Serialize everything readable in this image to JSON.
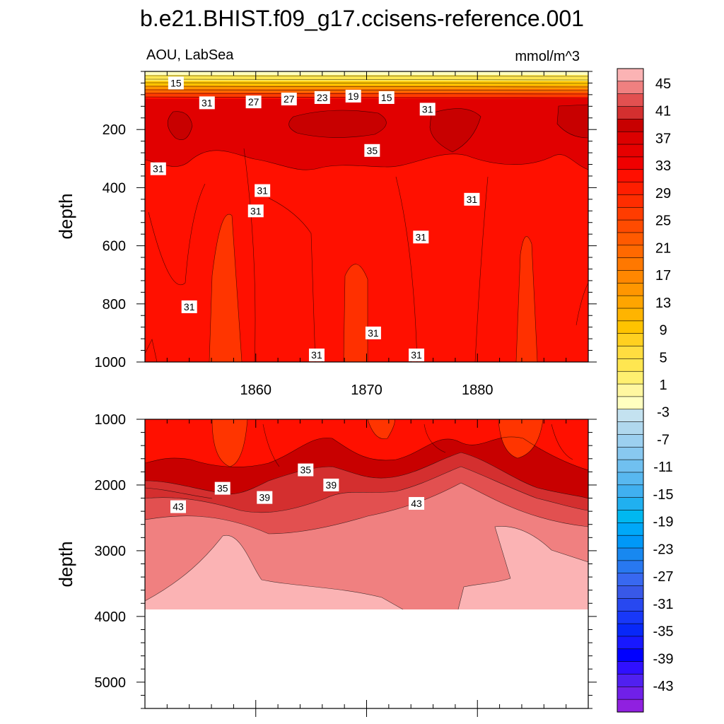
{
  "chart_data": [
    {
      "type": "contour",
      "panel": "upper",
      "title": "b.e21.BHIST.f09_g17.ccisens-reference.001",
      "left_subtitle": "AOU, LabSea",
      "right_subtitle": "mmol/m^3",
      "xlabel": "",
      "ylabel": "depth",
      "xlim": [
        1850,
        1890
      ],
      "ylim": [
        0,
        1000
      ],
      "y_inverted": true,
      "x_ticks": [
        1860,
        1870,
        1880
      ],
      "x_tick_labels": [
        "1860",
        "1870",
        "1880"
      ],
      "y_ticks": [
        200,
        400,
        600,
        800,
        1000
      ],
      "y_tick_labels": [
        "200",
        "400",
        "600",
        "800",
        "1000"
      ],
      "contour_labels": [
        {
          "text": "15",
          "x": 1852.8,
          "y": 40
        },
        {
          "text": "31",
          "x": 1855.6,
          "y": 108
        },
        {
          "text": "27",
          "x": 1859.8,
          "y": 105
        },
        {
          "text": "27",
          "x": 1863.0,
          "y": 95
        },
        {
          "text": "23",
          "x": 1866.0,
          "y": 90
        },
        {
          "text": "19",
          "x": 1868.8,
          "y": 85
        },
        {
          "text": "15",
          "x": 1871.8,
          "y": 90
        },
        {
          "text": "31",
          "x": 1875.5,
          "y": 130
        },
        {
          "text": "35",
          "x": 1870.5,
          "y": 272
        },
        {
          "text": "31",
          "x": 1851.2,
          "y": 335
        },
        {
          "text": "31",
          "x": 1860.6,
          "y": 410
        },
        {
          "text": "31",
          "x": 1879.5,
          "y": 440
        },
        {
          "text": "31",
          "x": 1860.0,
          "y": 480
        },
        {
          "text": "31",
          "x": 1874.9,
          "y": 570
        },
        {
          "text": "31",
          "x": 1854.0,
          "y": 810
        },
        {
          "text": "31",
          "x": 1870.6,
          "y": 900
        },
        {
          "text": "31",
          "x": 1865.5,
          "y": 1140
        },
        {
          "text": "31",
          "x": 1874.5,
          "y": 1180
        }
      ]
    },
    {
      "type": "contour",
      "panel": "lower",
      "xlabel": "",
      "ylabel": "depth",
      "xlim": [
        1850,
        1890
      ],
      "ylim": [
        1000,
        5400
      ],
      "y_inverted": true,
      "y_ticks": [
        1000,
        2000,
        3000,
        4000,
        5000
      ],
      "y_tick_labels": [
        "1000",
        "2000",
        "3000",
        "4000",
        "5000"
      ],
      "data_bottom_depth": 3870,
      "contour_labels": [
        {
          "text": "35",
          "x": 1864.5,
          "y": 1770
        },
        {
          "text": "35",
          "x": 1857.0,
          "y": 2050
        },
        {
          "text": "39",
          "x": 1866.8,
          "y": 2000
        },
        {
          "text": "39",
          "x": 1860.8,
          "y": 2190
        },
        {
          "text": "43",
          "x": 1853.0,
          "y": 2330
        },
        {
          "text": "43",
          "x": 1874.5,
          "y": 2280
        }
      ]
    }
  ],
  "colorbar": {
    "levels": [
      "45",
      "41",
      "37",
      "33",
      "29",
      "25",
      "21",
      "17",
      "13",
      "9",
      "5",
      "1",
      "-3",
      "-7",
      "-11",
      "-15",
      "-19",
      "-23",
      "-27",
      "-31",
      "-35",
      "-39",
      "-43"
    ],
    "colors": [
      "#fbb3b4",
      "#f08080",
      "#e25050",
      "#d42f2f",
      "#c80000",
      "#dc0000",
      "#e60000",
      "#f00000",
      "#ff0f00",
      "#ff1e00",
      "#ff2d00",
      "#ff3c00",
      "#ff4b00",
      "#ff5a00",
      "#ff6900",
      "#ff7800",
      "#ff8700",
      "#ff9600",
      "#ffa500",
      "#ffb400",
      "#ffc300",
      "#ffd020",
      "#ffdd40",
      "#ffe650",
      "#fff070",
      "#fff7a0",
      "#ffffc0",
      "#c4e2f0",
      "#b0d8ee",
      "#9cd0f0",
      "#88c8f0",
      "#70c0f0",
      "#58b8f0",
      "#40b0f0",
      "#20b0f0",
      "#00b8f0",
      "#00a8f8",
      "#0098f8",
      "#1888f0",
      "#2878f0",
      "#3868f0",
      "#3858e8",
      "#2848f0",
      "#1838f8",
      "#0828f8",
      "#1818ff",
      "#0000ff",
      "#3010ff",
      "#5020f0",
      "#7020e8",
      "#9020e0"
    ]
  }
}
